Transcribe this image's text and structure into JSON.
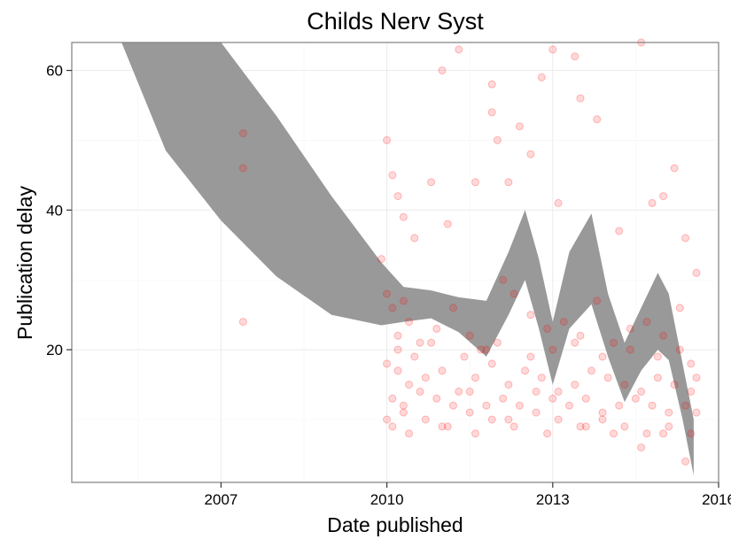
{
  "chart_data": {
    "type": "scatter",
    "title": "Childs Nerv Syst",
    "xlabel": "Date published",
    "ylabel": "Publication delay",
    "xlim": [
      2004.3,
      2016.0
    ],
    "ylim": [
      1.0,
      64.0
    ],
    "x_ticks": [
      2007,
      2010,
      2013,
      2016
    ],
    "x_tick_labels": [
      "2007",
      "2010",
      "2013",
      "2016"
    ],
    "y_ticks": [
      20,
      40,
      60
    ],
    "y_tick_labels": [
      "20",
      "40",
      "60"
    ],
    "grid": true,
    "legend": "none",
    "colors": {
      "points": "#ff0000",
      "ribbon": "#999999",
      "border": "#7f7f7f"
    },
    "confidence_band": {
      "x": [
        2005.2,
        2006.0,
        2007.0,
        2008.0,
        2009.0,
        2009.9,
        2010.3,
        2010.8,
        2011.3,
        2011.8,
        2012.2,
        2012.5,
        2012.75,
        2013.0,
        2013.3,
        2013.7,
        2014.0,
        2014.3,
        2014.6,
        2014.9,
        2015.1,
        2015.35,
        2015.55
      ],
      "upper": [
        64,
        64,
        64,
        53.5,
        42,
        32.5,
        29,
        28.5,
        27.5,
        27,
        34,
        40,
        33,
        24,
        34,
        39.5,
        28,
        21,
        26,
        31,
        28,
        18,
        10
      ],
      "lower": [
        64,
        48.5,
        38.5,
        30.5,
        25,
        23.5,
        24,
        24.5,
        22.5,
        19,
        25,
        30,
        23,
        15,
        23,
        26.5,
        19,
        12.5,
        17,
        20,
        18.5,
        10,
        2
      ]
    },
    "points": {
      "x": [
        2007.4,
        2007.4,
        2007.4,
        2009.9,
        2010.0,
        2010.1,
        2010.2,
        2010.3,
        2010.5,
        2010.8,
        2011.0,
        2011.1,
        2011.3,
        2011.6,
        2011.9,
        2011.9,
        2012.0,
        2012.2,
        2012.4,
        2012.6,
        2012.8,
        2013.0,
        2013.1,
        2013.4,
        2013.5,
        2013.8,
        2014.2,
        2014.6,
        2014.8,
        2015.0,
        2015.2,
        2015.4,
        2015.6,
        2010.0,
        2010.1,
        2010.2,
        2010.3,
        2010.4,
        2010.6,
        2010.9,
        2011.2,
        2011.5,
        2011.8,
        2012.1,
        2012.3,
        2012.6,
        2012.9,
        2013.2,
        2013.5,
        2013.8,
        2014.1,
        2014.4,
        2014.7,
        2015.0,
        2015.3,
        2015.5,
        2010.0,
        2010.2,
        2010.4,
        2010.7,
        2011.0,
        2011.3,
        2011.6,
        2011.9,
        2012.2,
        2012.5,
        2012.8,
        2013.1,
        2013.4,
        2013.7,
        2014.0,
        2014.3,
        2014.6,
        2014.9,
        2015.2,
        2015.5,
        2010.1,
        2010.3,
        2010.6,
        2010.9,
        2011.2,
        2011.5,
        2011.8,
        2012.1,
        2012.4,
        2012.7,
        2013.0,
        2013.3,
        2013.6,
        2013.9,
        2014.2,
        2014.5,
        2014.8,
        2015.1,
        2015.4,
        2015.6,
        2010.0,
        2010.3,
        2010.7,
        2011.1,
        2011.5,
        2011.9,
        2012.3,
        2012.7,
        2013.1,
        2013.5,
        2013.9,
        2014.3,
        2014.7,
        2015.1,
        2015.5,
        2010.2,
        2010.5,
        2010.8,
        2011.4,
        2011.7,
        2012.0,
        2012.6,
        2013.0,
        2013.4,
        2013.9,
        2014.4,
        2014.9,
        2015.3,
        2015.6,
        2010.1,
        2010.4,
        2011.0,
        2011.6,
        2012.2,
        2012.9,
        2013.6,
        2014.1,
        2014.6,
        2015.0,
        2015.4
      ],
      "y": [
        51,
        46,
        24,
        33,
        50,
        45,
        42,
        39,
        36,
        44,
        60,
        38,
        63,
        44,
        54,
        58,
        50,
        44,
        52,
        48,
        59,
        63,
        41,
        62,
        56,
        53,
        37,
        64,
        41,
        42,
        46,
        36,
        31,
        28,
        26,
        22,
        27,
        24,
        21,
        23,
        26,
        22,
        20,
        30,
        28,
        25,
        23,
        24,
        22,
        27,
        21,
        23,
        24,
        22,
        26,
        18,
        18,
        17,
        15,
        16,
        17,
        14,
        16,
        18,
        15,
        17,
        16,
        14,
        15,
        17,
        16,
        15,
        14,
        16,
        15,
        14,
        13,
        12,
        14,
        13,
        12,
        14,
        12,
        13,
        12,
        14,
        13,
        12,
        13,
        11,
        12,
        13,
        12,
        11,
        12,
        11,
        10,
        11,
        10,
        9,
        11,
        10,
        9,
        11,
        10,
        9,
        10,
        9,
        8,
        9,
        8,
        20,
        19,
        21,
        19,
        20,
        21,
        19,
        20,
        21,
        19,
        20,
        19,
        20,
        16,
        9,
        8,
        9,
        8,
        10,
        8,
        9,
        8,
        6,
        8,
        4
      ]
    }
  }
}
